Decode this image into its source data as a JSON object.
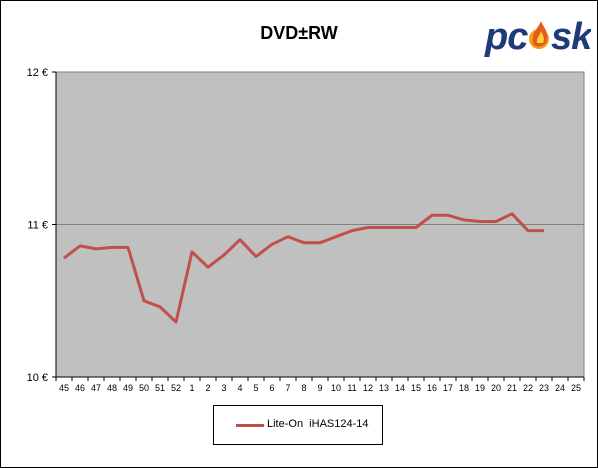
{
  "logo_text": "pc-sk",
  "chart_data": {
    "type": "line",
    "title": "DVD±RW",
    "xlabel": "",
    "ylabel": "",
    "categories": [
      "45",
      "46",
      "47",
      "48",
      "49",
      "50",
      "51",
      "52",
      "1",
      "2",
      "3",
      "4",
      "5",
      "6",
      "7",
      "8",
      "9",
      "10",
      "11",
      "12",
      "13",
      "14",
      "15",
      "16",
      "17",
      "18",
      "19",
      "20",
      "21",
      "22",
      "23",
      "24",
      "25"
    ],
    "ylim": [
      10,
      12
    ],
    "yticks": [
      10,
      11,
      12
    ],
    "ytick_labels": [
      "10 €",
      "11 €",
      "12 €"
    ],
    "grid": "horizontal major lines",
    "legend_position": "bottom",
    "plot_background": "#c0c0c0",
    "series": [
      {
        "name": "Lite-On  iHAS124-14",
        "color": "#c0504d",
        "values": [
          10.78,
          10.86,
          10.84,
          10.85,
          10.85,
          10.5,
          10.46,
          10.36,
          10.82,
          10.72,
          10.8,
          10.9,
          10.79,
          10.87,
          10.92,
          10.88,
          10.88,
          10.92,
          10.96,
          10.98,
          10.98,
          10.98,
          10.98,
          11.06,
          11.06,
          11.03,
          11.02,
          11.02,
          11.07,
          10.96,
          10.96,
          null,
          null
        ]
      }
    ]
  }
}
